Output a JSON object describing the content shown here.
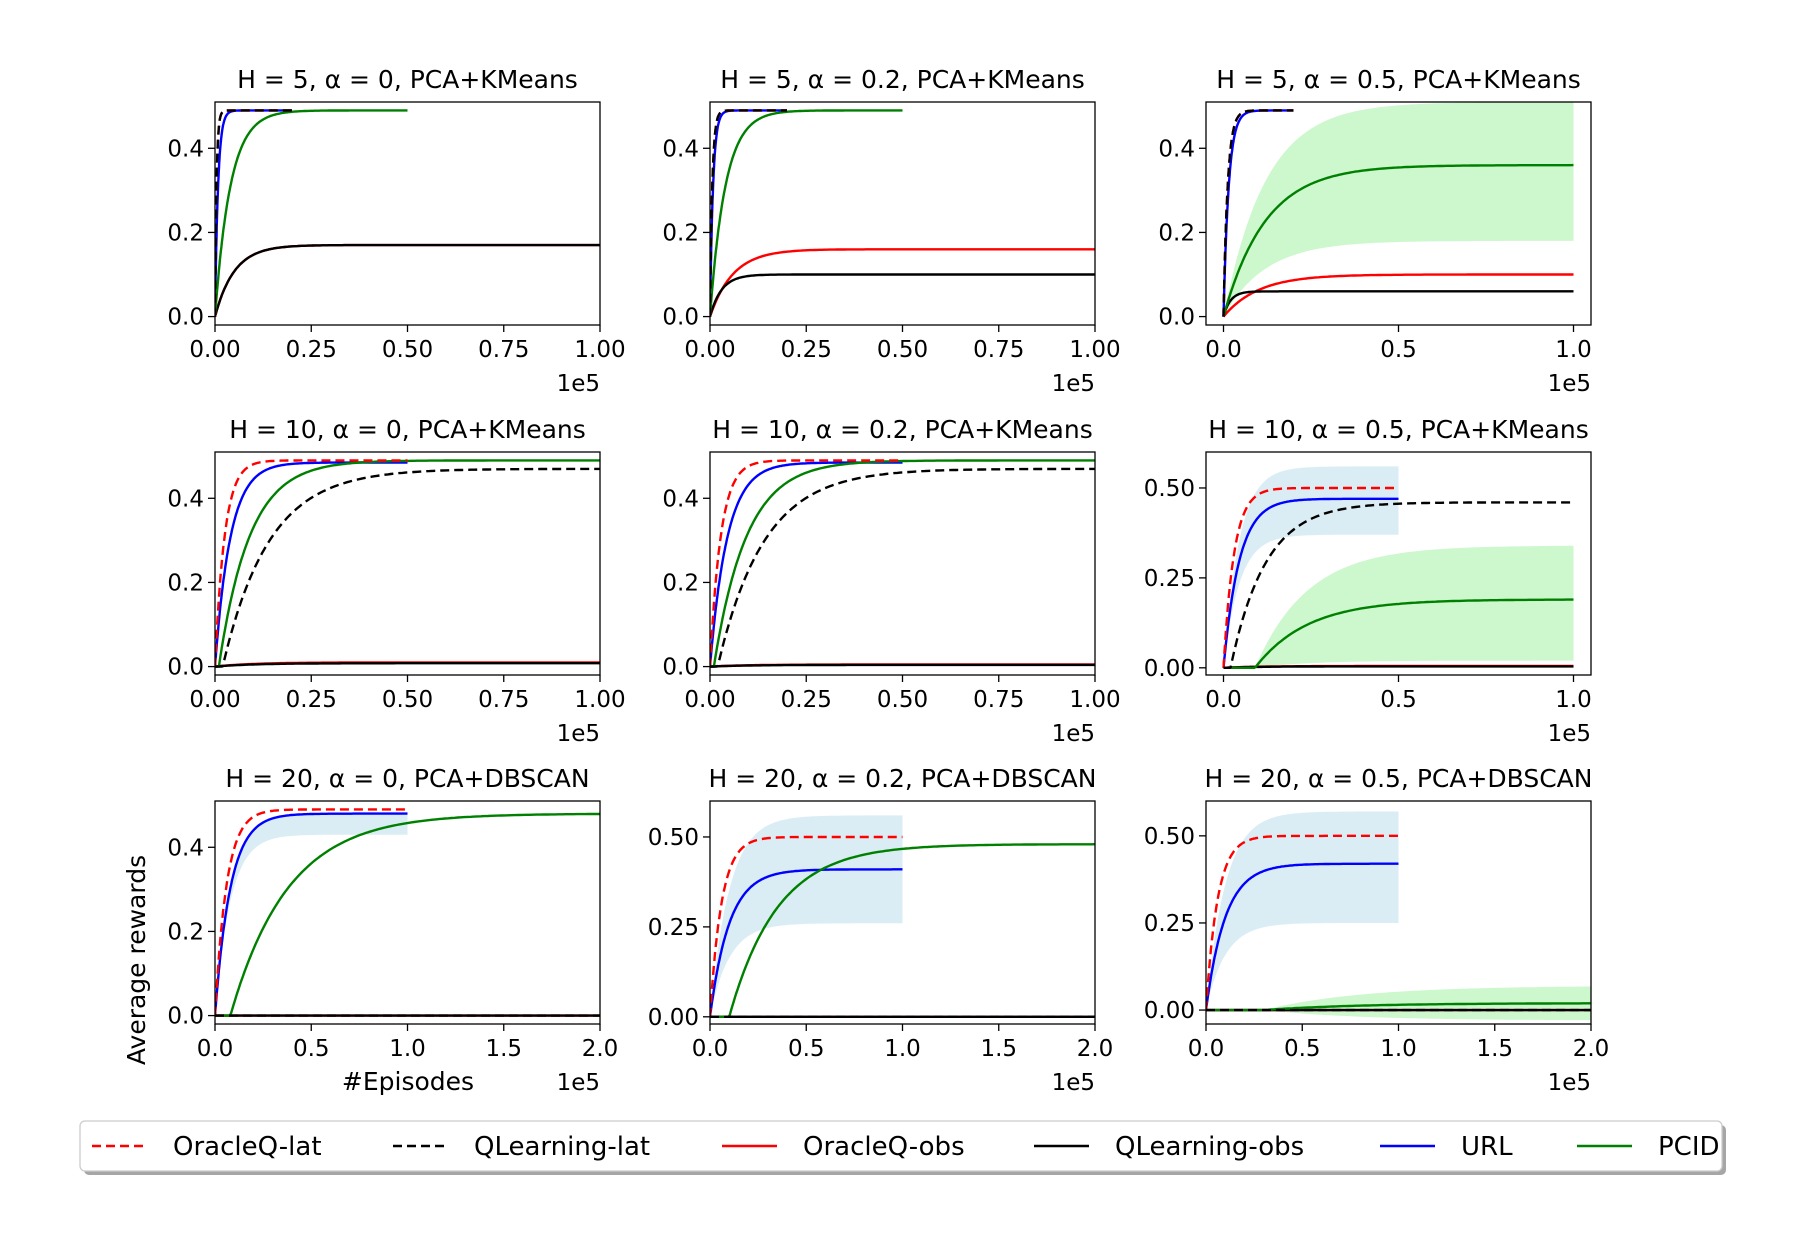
{
  "chart_data": {
    "type": "line",
    "ylabel": "Average rewards",
    "xlabel": "#Episodes",
    "x_scale_label": "1e5",
    "legend": [
      {
        "name": "OracleQ-lat",
        "color": "#ff0000",
        "dash": true
      },
      {
        "name": "QLearning-lat",
        "color": "#000000",
        "dash": true
      },
      {
        "name": "OracleQ-obs",
        "color": "#ff0000",
        "dash": false
      },
      {
        "name": "QLearning-obs",
        "color": "#000000",
        "dash": false
      },
      {
        "name": "URL",
        "color": "#0000ff",
        "dash": false
      },
      {
        "name": "PCID",
        "color": "#008000",
        "dash": false
      }
    ],
    "subplots": [
      {
        "title": "H = 5, α = 0, PCA+KMeans",
        "xlim": [
          0,
          1.0
        ],
        "ylim": [
          -0.02,
          0.51
        ],
        "xticks": [
          0,
          0.25,
          0.5,
          0.75,
          1.0
        ],
        "xtick_labels": [
          "0.00",
          "0.25",
          "0.50",
          "0.75",
          "1.00"
        ],
        "yticks": [
          0,
          0.2,
          0.4
        ],
        "ytick_labels": [
          "0.0",
          "0.2",
          "0.4"
        ],
        "series": [
          {
            "name": "OracleQ-lat",
            "xmax": 0.2,
            "y0": 0,
            "ymax": 0.49,
            "tau": 0.004
          },
          {
            "name": "QLearning-lat",
            "xmax": 0.2,
            "y0": 0,
            "ymax": 0.49,
            "tau": 0.004
          },
          {
            "name": "OracleQ-obs",
            "xmax": 1.0,
            "y0": 0,
            "ymax": 0.17,
            "tau": 0.05
          },
          {
            "name": "QLearning-obs",
            "xmax": 1.0,
            "y0": 0,
            "ymax": 0.17,
            "tau": 0.05
          },
          {
            "name": "URL",
            "xmax": 0.2,
            "y0": 0,
            "ymax": 0.49,
            "tau": 0.008
          },
          {
            "name": "PCID",
            "xmax": 0.5,
            "y0": 0,
            "ymax": 0.49,
            "tau": 0.04
          }
        ]
      },
      {
        "title": "H = 5, α = 0.2, PCA+KMeans",
        "xlim": [
          0,
          1.0
        ],
        "ylim": [
          -0.02,
          0.51
        ],
        "xticks": [
          0,
          0.25,
          0.5,
          0.75,
          1.0
        ],
        "xtick_labels": [
          "0.00",
          "0.25",
          "0.50",
          "0.75",
          "1.00"
        ],
        "yticks": [
          0,
          0.2,
          0.4
        ],
        "ytick_labels": [
          "0.0",
          "0.2",
          "0.4"
        ],
        "series": [
          {
            "name": "OracleQ-lat",
            "xmax": 0.2,
            "y0": 0,
            "ymax": 0.49,
            "tau": 0.006
          },
          {
            "name": "QLearning-lat",
            "xmax": 0.2,
            "y0": 0,
            "ymax": 0.49,
            "tau": 0.006
          },
          {
            "name": "OracleQ-obs",
            "xmax": 1.0,
            "y0": 0,
            "ymax": 0.16,
            "tau": 0.06
          },
          {
            "name": "QLearning-obs",
            "xmax": 1.0,
            "y0": 0,
            "ymax": 0.1,
            "tau": 0.03
          },
          {
            "name": "URL",
            "xmax": 0.2,
            "y0": 0,
            "ymax": 0.49,
            "tau": 0.008
          },
          {
            "name": "PCID",
            "xmax": 0.5,
            "y0": 0,
            "ymax": 0.49,
            "tau": 0.04
          }
        ]
      },
      {
        "title": "H = 5, α = 0.5, PCA+KMeans",
        "xlim": [
          -0.05,
          1.05
        ],
        "ylim": [
          -0.02,
          0.51
        ],
        "xticks": [
          0,
          0.5,
          1.0
        ],
        "xtick_labels": [
          "0.0",
          "0.5",
          "1.0"
        ],
        "yticks": [
          0,
          0.2,
          0.4
        ],
        "ytick_labels": [
          "0.0",
          "0.2",
          "0.4"
        ],
        "series": [
          {
            "name": "OracleQ-lat",
            "xmax": 0.2,
            "y0": 0,
            "ymax": 0.49,
            "tau": 0.012
          },
          {
            "name": "QLearning-lat",
            "xmax": 0.2,
            "y0": 0,
            "ymax": 0.49,
            "tau": 0.012
          },
          {
            "name": "OracleQ-obs",
            "xmax": 1.0,
            "y0": 0,
            "ymax": 0.1,
            "tau": 0.1
          },
          {
            "name": "QLearning-obs",
            "xmax": 1.0,
            "y0": 0,
            "ymax": 0.06,
            "tau": 0.02
          },
          {
            "name": "URL",
            "xmax": 0.2,
            "y0": 0,
            "ymax": 0.49,
            "tau": 0.015
          },
          {
            "name": "PCID",
            "xmax": 1.0,
            "y0": 0,
            "ymax": 0.36,
            "tau": 0.12,
            "band": [
              0.18,
              0.51
            ]
          }
        ]
      },
      {
        "title": "H = 10, α = 0, PCA+KMeans",
        "xlim": [
          0,
          1.0
        ],
        "ylim": [
          -0.02,
          0.51
        ],
        "xticks": [
          0,
          0.25,
          0.5,
          0.75,
          1.0
        ],
        "xtick_labels": [
          "0.00",
          "0.25",
          "0.50",
          "0.75",
          "1.00"
        ],
        "yticks": [
          0,
          0.2,
          0.4
        ],
        "ytick_labels": [
          "0.0",
          "0.2",
          "0.4"
        ],
        "series": [
          {
            "name": "OracleQ-lat",
            "xmax": 0.5,
            "y0": 0,
            "ymax": 0.49,
            "tau": 0.025
          },
          {
            "name": "QLearning-lat",
            "xmax": 1.0,
            "y0": 0,
            "ymax": 0.47,
            "tau": 0.12,
            "delay": 0.02
          },
          {
            "name": "OracleQ-obs",
            "xmax": 1.0,
            "y0": 0,
            "ymax": 0.01,
            "tau": 0.1
          },
          {
            "name": "QLearning-obs",
            "xmax": 1.0,
            "y0": 0,
            "ymax": 0.008,
            "tau": 0.1
          },
          {
            "name": "URL",
            "xmax": 0.5,
            "y0": 0,
            "ymax": 0.485,
            "tau": 0.04
          },
          {
            "name": "PCID",
            "xmax": 1.0,
            "y0": 0,
            "ymax": 0.49,
            "tau": 0.08,
            "delay": 0.01
          }
        ]
      },
      {
        "title": "H = 10, α = 0.2, PCA+KMeans",
        "xlim": [
          0,
          1.0
        ],
        "ylim": [
          -0.02,
          0.51
        ],
        "xticks": [
          0,
          0.25,
          0.5,
          0.75,
          1.0
        ],
        "xtick_labels": [
          "0.00",
          "0.25",
          "0.50",
          "0.75",
          "1.00"
        ],
        "yticks": [
          0,
          0.2,
          0.4
        ],
        "ytick_labels": [
          "0.0",
          "0.2",
          "0.4"
        ],
        "series": [
          {
            "name": "OracleQ-lat",
            "xmax": 0.5,
            "y0": 0,
            "ymax": 0.49,
            "tau": 0.028
          },
          {
            "name": "QLearning-lat",
            "xmax": 1.0,
            "y0": 0,
            "ymax": 0.47,
            "tau": 0.12,
            "delay": 0.02
          },
          {
            "name": "OracleQ-obs",
            "xmax": 1.0,
            "y0": 0,
            "ymax": 0.005,
            "tau": 0.1
          },
          {
            "name": "QLearning-obs",
            "xmax": 1.0,
            "y0": 0,
            "ymax": 0.004,
            "tau": 0.1
          },
          {
            "name": "URL",
            "xmax": 0.5,
            "y0": 0,
            "ymax": 0.485,
            "tau": 0.045
          },
          {
            "name": "PCID",
            "xmax": 1.0,
            "y0": 0,
            "ymax": 0.49,
            "tau": 0.085,
            "delay": 0.01
          }
        ]
      },
      {
        "title": "H = 10, α = 0.5, PCA+KMeans",
        "xlim": [
          -0.05,
          1.05
        ],
        "ylim": [
          -0.02,
          0.6
        ],
        "xticks": [
          0,
          0.5,
          1.0
        ],
        "xtick_labels": [
          "0.0",
          "0.5",
          "1.0"
        ],
        "yticks": [
          0,
          0.25,
          0.5
        ],
        "ytick_labels": [
          "0.00",
          "0.25",
          "0.50"
        ],
        "series": [
          {
            "name": "OracleQ-lat",
            "xmax": 0.5,
            "y0": 0,
            "ymax": 0.5,
            "tau": 0.03
          },
          {
            "name": "QLearning-lat",
            "xmax": 1.0,
            "y0": 0,
            "ymax": 0.46,
            "tau": 0.1,
            "delay": 0.02
          },
          {
            "name": "OracleQ-obs",
            "xmax": 1.0,
            "y0": 0,
            "ymax": 0.005,
            "tau": 0.1
          },
          {
            "name": "QLearning-obs",
            "xmax": 1.0,
            "y0": 0,
            "ymax": 0.004,
            "tau": 0.1
          },
          {
            "name": "URL",
            "xmax": 0.5,
            "y0": 0,
            "ymax": 0.47,
            "tau": 0.045,
            "band": [
              0.37,
              0.56
            ]
          },
          {
            "name": "PCID",
            "xmax": 1.0,
            "y0": 0,
            "ymax": 0.19,
            "tau": 0.15,
            "delay": 0.09,
            "band": [
              0.02,
              0.34
            ]
          }
        ]
      },
      {
        "title": "H = 20, α = 0, PCA+DBSCAN",
        "xlim": [
          0,
          2.0
        ],
        "ylim": [
          -0.02,
          0.51
        ],
        "xticks": [
          0,
          0.5,
          1.0,
          1.5,
          2.0
        ],
        "xtick_labels": [
          "0.0",
          "0.5",
          "1.0",
          "1.5",
          "2.0"
        ],
        "yticks": [
          0,
          0.2,
          0.4
        ],
        "ytick_labels": [
          "0.0",
          "0.2",
          "0.4"
        ],
        "series": [
          {
            "name": "OracleQ-lat",
            "xmax": 1.0,
            "y0": 0,
            "ymax": 0.49,
            "tau": 0.06
          },
          {
            "name": "QLearning-lat",
            "xmax": 2.0,
            "y0": 0,
            "ymax": 0.0,
            "tau": 0.1
          },
          {
            "name": "OracleQ-obs",
            "xmax": 2.0,
            "y0": 0,
            "ymax": 0.0,
            "tau": 0.1
          },
          {
            "name": "QLearning-obs",
            "xmax": 2.0,
            "y0": 0,
            "ymax": 0.0,
            "tau": 0.1
          },
          {
            "name": "URL",
            "xmax": 1.0,
            "y0": 0,
            "ymax": 0.48,
            "tau": 0.08,
            "band": [
              0.43,
              0.48
            ]
          },
          {
            "name": "PCID",
            "xmax": 2.0,
            "y0": 0,
            "ymax": 0.48,
            "tau": 0.3,
            "delay": 0.08
          }
        ]
      },
      {
        "title": "H = 20, α = 0.2, PCA+DBSCAN",
        "xlim": [
          0,
          2.0
        ],
        "ylim": [
          -0.02,
          0.6
        ],
        "xticks": [
          0,
          0.5,
          1.0,
          1.5,
          2.0
        ],
        "xtick_labels": [
          "0.0",
          "0.5",
          "1.0",
          "1.5",
          "2.0"
        ],
        "yticks": [
          0,
          0.25,
          0.5
        ],
        "ytick_labels": [
          "0.00",
          "0.25",
          "0.50"
        ],
        "series": [
          {
            "name": "OracleQ-lat",
            "xmax": 1.0,
            "y0": 0,
            "ymax": 0.5,
            "tau": 0.06
          },
          {
            "name": "QLearning-lat",
            "xmax": 2.0,
            "y0": 0,
            "ymax": 0.0,
            "tau": 0.1
          },
          {
            "name": "OracleQ-obs",
            "xmax": 2.0,
            "y0": 0,
            "ymax": 0.0,
            "tau": 0.1
          },
          {
            "name": "QLearning-obs",
            "xmax": 2.0,
            "y0": 0,
            "ymax": 0.0,
            "tau": 0.1
          },
          {
            "name": "URL",
            "xmax": 1.0,
            "y0": 0,
            "ymax": 0.41,
            "tau": 0.1,
            "band": [
              0.26,
              0.56
            ]
          },
          {
            "name": "PCID",
            "xmax": 2.0,
            "y0": 0,
            "ymax": 0.48,
            "tau": 0.25,
            "delay": 0.1
          }
        ]
      },
      {
        "title": "H = 20, α = 0.5, PCA+DBSCAN",
        "xlim": [
          0,
          2.0
        ],
        "ylim": [
          -0.04,
          0.6
        ],
        "xticks": [
          0,
          0.5,
          1.0,
          1.5,
          2.0
        ],
        "xtick_labels": [
          "0.0",
          "0.5",
          "1.0",
          "1.5",
          "2.0"
        ],
        "yticks": [
          0,
          0.25,
          0.5
        ],
        "ytick_labels": [
          "0.00",
          "0.25",
          "0.50"
        ],
        "series": [
          {
            "name": "OracleQ-lat",
            "xmax": 1.0,
            "y0": 0,
            "ymax": 0.5,
            "tau": 0.06
          },
          {
            "name": "QLearning-lat",
            "xmax": 2.0,
            "y0": 0,
            "ymax": 0.0,
            "tau": 0.1
          },
          {
            "name": "OracleQ-obs",
            "xmax": 2.0,
            "y0": 0,
            "ymax": 0.0,
            "tau": 0.1
          },
          {
            "name": "QLearning-obs",
            "xmax": 2.0,
            "y0": 0,
            "ymax": 0.0,
            "tau": 0.1
          },
          {
            "name": "URL",
            "xmax": 1.0,
            "y0": 0,
            "ymax": 0.42,
            "tau": 0.1,
            "band": [
              0.25,
              0.57
            ]
          },
          {
            "name": "PCID",
            "xmax": 2.0,
            "y0": 0,
            "ymax": 0.02,
            "tau": 0.5,
            "delay": 0.3,
            "band": [
              -0.03,
              0.07
            ]
          }
        ]
      }
    ]
  }
}
